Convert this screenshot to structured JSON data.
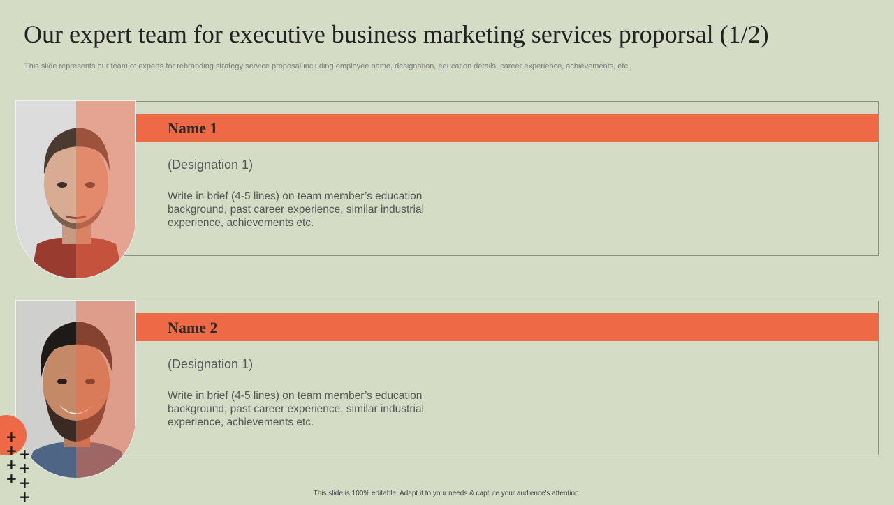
{
  "slide": {
    "title": "Our expert team for executive business marketing services proporsal (1/2)",
    "subtitle": "This slide represents our team of experts for rebranding strategy service proposal including employee name, designation, education details, career experience, achievements, etc.",
    "footer": "This slide is 100% editable.  Adapt it to your needs & capture your audience's attention."
  },
  "members": [
    {
      "name": "Name 1",
      "designation": "(Designation 1)",
      "bio": "Write in brief (4-5 lines) on team member’s education background, past career experience, similar industrial experience, achievements etc."
    },
    {
      "name": "Name 2",
      "designation": "(Designation 1)",
      "bio": "Write in brief (4-5 lines) on team member’s education background, past career experience, similar industrial experience, achievements etc."
    }
  ],
  "colors": {
    "background": "#d4dcc5",
    "accent": "#ee6a47"
  },
  "icons": {
    "decoration": "plus-icon"
  }
}
